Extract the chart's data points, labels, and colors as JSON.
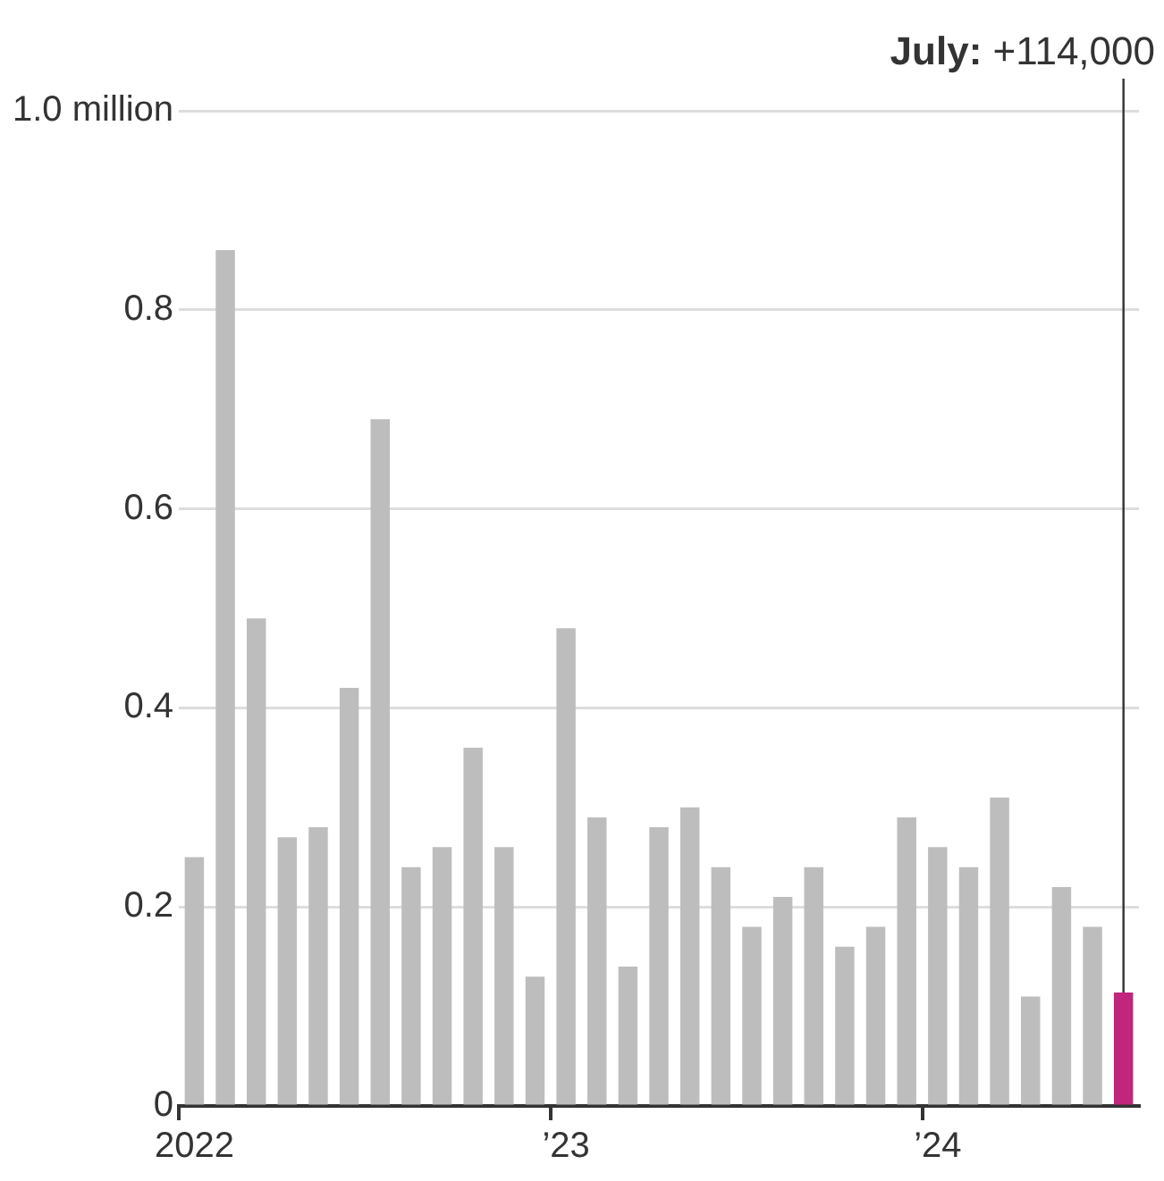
{
  "chart_data": {
    "type": "bar",
    "categories": [
      "2022",
      null,
      null,
      null,
      null,
      null,
      null,
      null,
      null,
      null,
      null,
      null,
      "’23",
      null,
      null,
      null,
      null,
      null,
      null,
      null,
      null,
      null,
      null,
      null,
      "’24",
      null,
      null,
      null,
      null,
      null,
      null
    ],
    "values": [
      0.25,
      0.86,
      0.49,
      0.27,
      0.28,
      0.42,
      0.69,
      0.24,
      0.26,
      0.36,
      0.26,
      0.13,
      0.48,
      0.29,
      0.14,
      0.28,
      0.3,
      0.24,
      0.18,
      0.21,
      0.24,
      0.16,
      0.18,
      0.29,
      0.26,
      0.24,
      0.31,
      0.11,
      0.22,
      0.18,
      0.114
    ],
    "colors": [
      "#bdbdbd",
      "#bdbdbd",
      "#bdbdbd",
      "#bdbdbd",
      "#bdbdbd",
      "#bdbdbd",
      "#bdbdbd",
      "#bdbdbd",
      "#bdbdbd",
      "#bdbdbd",
      "#bdbdbd",
      "#bdbdbd",
      "#bdbdbd",
      "#bdbdbd",
      "#bdbdbd",
      "#bdbdbd",
      "#bdbdbd",
      "#bdbdbd",
      "#bdbdbd",
      "#bdbdbd",
      "#bdbdbd",
      "#bdbdbd",
      "#bdbdbd",
      "#bdbdbd",
      "#bdbdbd",
      "#bdbdbd",
      "#bdbdbd",
      "#bdbdbd",
      "#bdbdbd",
      "#bdbdbd",
      "#c0267c"
    ],
    "ylim": [
      0,
      1
    ],
    "yticks": [
      0,
      0.2,
      0.4,
      0.6,
      0.8,
      {
        "value": 1,
        "label": "1.0 million"
      }
    ],
    "grid": "y",
    "legend": false,
    "annotations": [
      "July: +114,000"
    ]
  }
}
